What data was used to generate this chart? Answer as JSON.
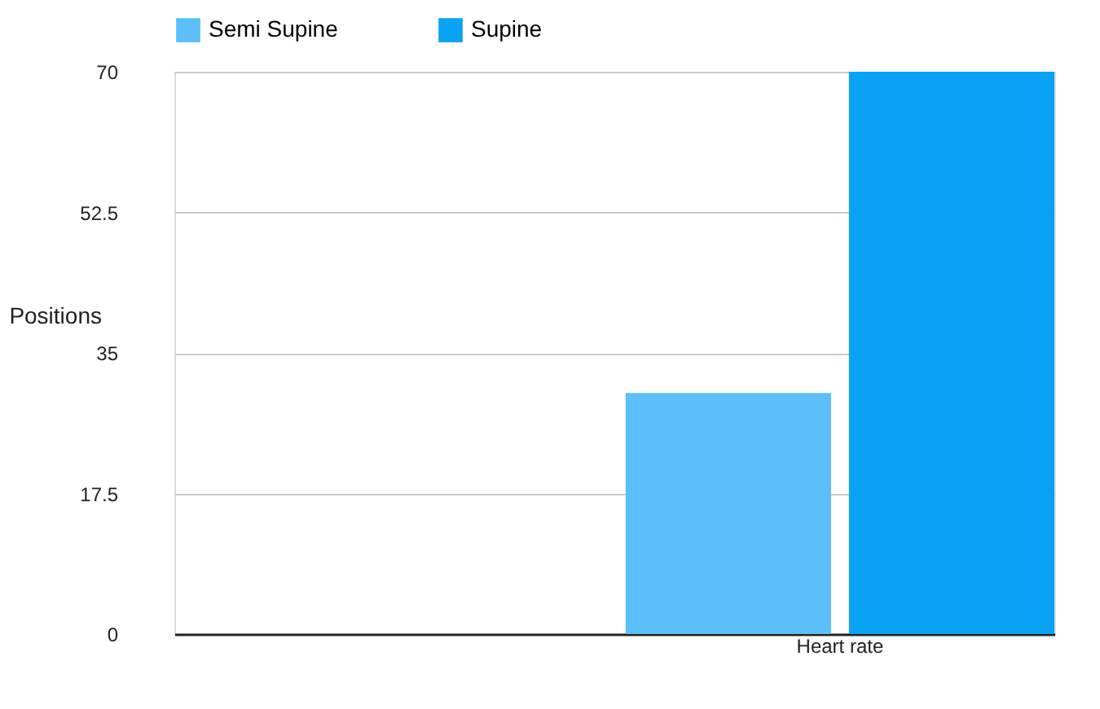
{
  "chart_data": {
    "type": "bar",
    "ylabel": "Positions",
    "categories": [
      null,
      "Heart rate"
    ],
    "series": [
      {
        "name": "Semi Supine",
        "color": "#5bc0fa",
        "values": [
          null,
          30
        ]
      },
      {
        "name": "Supine",
        "color": "#0aa2f5",
        "values": [
          null,
          70
        ]
      }
    ],
    "ylim": [
      0,
      70
    ],
    "yticks": [
      0,
      17.5,
      35,
      52.5,
      70
    ],
    "grid": "y",
    "legend": "top"
  }
}
